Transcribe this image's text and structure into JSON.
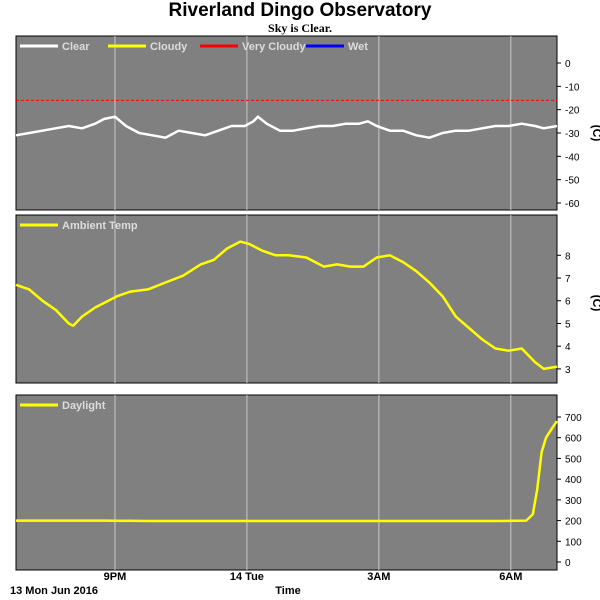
{
  "title": "Riverland Dingo Observatory",
  "subtitle": "Sky is Clear.",
  "x_axis": {
    "label": "Time",
    "start_label": "13 Mon Jun 2016",
    "ticks": [
      {
        "t": 2.25,
        "label": "9PM"
      },
      {
        "t": 5.25,
        "label": "14 Tue"
      },
      {
        "t": 8.25,
        "label": "3AM"
      },
      {
        "t": 11.25,
        "label": "6AM"
      }
    ],
    "range": [
      0,
      12.3
    ]
  },
  "chart_data": [
    {
      "type": "line",
      "panel": "sky",
      "unit_label": "(C)",
      "ylim": [
        -60,
        0
      ],
      "yticks": [
        0,
        -10,
        -20,
        -30,
        -40,
        -50,
        -60
      ],
      "thresholds": [
        {
          "name": "Very Cloudy",
          "value": -16,
          "color": "#ff0000"
        }
      ],
      "legend": [
        {
          "name": "Clear",
          "color": "#ffffff"
        },
        {
          "name": "Cloudy",
          "color": "#ffff00"
        },
        {
          "name": "Very Cloudy",
          "color": "#ff0000"
        },
        {
          "name": "Wet",
          "color": "#0000ff"
        }
      ],
      "series": [
        {
          "name": "Clear",
          "color": "#ffffff",
          "x": [
            0,
            0.3,
            0.6,
            0.9,
            1.2,
            1.5,
            1.8,
            2.0,
            2.25,
            2.5,
            2.8,
            3.1,
            3.4,
            3.7,
            4.0,
            4.3,
            4.6,
            4.9,
            5.2,
            5.4,
            5.5,
            5.7,
            6.0,
            6.3,
            6.6,
            6.9,
            7.2,
            7.5,
            7.8,
            8.0,
            8.2,
            8.5,
            8.8,
            9.1,
            9.4,
            9.7,
            10.0,
            10.3,
            10.6,
            10.9,
            11.2,
            11.5,
            11.8,
            12.0,
            12.3
          ],
          "y": [
            -31,
            -30,
            -29,
            -28,
            -27,
            -28,
            -26,
            -24,
            -23,
            -27,
            -30,
            -31,
            -32,
            -29,
            -30,
            -31,
            -29,
            -27,
            -27,
            -25,
            -23,
            -26,
            -29,
            -29,
            -28,
            -27,
            -27,
            -26,
            -26,
            -25,
            -27,
            -29,
            -29,
            -31,
            -32,
            -30,
            -29,
            -29,
            -28,
            -27,
            -27,
            -26,
            -27,
            -28,
            -27
          ]
        }
      ]
    },
    {
      "type": "line",
      "panel": "temp",
      "unit_label": "(C)",
      "ylim": [
        2.6,
        9.2
      ],
      "yticks": [
        8,
        7,
        6,
        5,
        4,
        3
      ],
      "legend": [
        {
          "name": "Ambient Temp",
          "color": "#ffff00"
        }
      ],
      "series": [
        {
          "name": "Ambient Temp",
          "color": "#ffff00",
          "x": [
            0,
            0.3,
            0.6,
            0.9,
            1.2,
            1.3,
            1.5,
            1.8,
            2.0,
            2.3,
            2.6,
            3.0,
            3.4,
            3.8,
            4.2,
            4.5,
            4.8,
            5.1,
            5.3,
            5.6,
            5.9,
            6.2,
            6.6,
            7.0,
            7.3,
            7.6,
            7.9,
            8.2,
            8.5,
            8.8,
            9.1,
            9.4,
            9.7,
            10.0,
            10.3,
            10.6,
            10.9,
            11.2,
            11.5,
            11.8,
            12.0,
            12.3
          ],
          "y": [
            6.7,
            6.5,
            6.0,
            5.6,
            5.0,
            4.9,
            5.3,
            5.7,
            5.9,
            6.2,
            6.4,
            6.5,
            6.8,
            7.1,
            7.6,
            7.8,
            8.3,
            8.6,
            8.5,
            8.2,
            8.0,
            8.0,
            7.9,
            7.5,
            7.6,
            7.5,
            7.5,
            7.9,
            8.0,
            7.7,
            7.3,
            6.8,
            6.2,
            5.3,
            4.8,
            4.3,
            3.9,
            3.8,
            3.9,
            3.3,
            3.0,
            3.1
          ]
        }
      ]
    },
    {
      "type": "line",
      "panel": "daylight",
      "unit_label": "",
      "ylim": [
        0,
        700
      ],
      "yticks": [
        700,
        600,
        500,
        400,
        300,
        200,
        100,
        0
      ],
      "legend": [
        {
          "name": "Daylight",
          "color": "#ffff00"
        }
      ],
      "series": [
        {
          "name": "Daylight",
          "color": "#ffff00",
          "x": [
            0,
            1.0,
            2.0,
            3.0,
            4.0,
            5.0,
            6.0,
            7.0,
            8.0,
            9.0,
            10.0,
            11.0,
            11.6,
            11.75,
            11.85,
            11.95,
            12.05,
            12.2,
            12.3
          ],
          "y": [
            200,
            200,
            200,
            198,
            198,
            198,
            198,
            198,
            198,
            198,
            198,
            198,
            200,
            230,
            350,
            530,
            600,
            650,
            680
          ]
        }
      ]
    }
  ]
}
